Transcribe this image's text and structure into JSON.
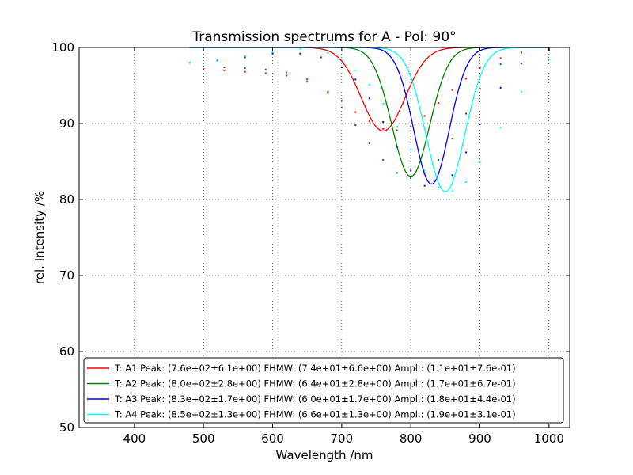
{
  "chart_data": {
    "type": "scatter",
    "title": "Transmission spectrums for A - Pol: 90°",
    "xlabel": "Wavelength  /nm",
    "ylabel": "rel. Intensity  /%",
    "xlim": [
      320,
      1030
    ],
    "ylim": [
      50,
      100
    ],
    "xticks": [
      "400",
      "500",
      "600",
      "700",
      "800",
      "900",
      "1000"
    ],
    "yticks": [
      "50",
      "60",
      "70",
      "80",
      "90",
      "100"
    ],
    "grid": true,
    "legend_position": "bottom",
    "series": [
      {
        "name": "T: A1 Peak: (7.6e+02±6.1e+00)  FHMW: (7.4e+01±6.6e+00)  Ampl.: (1.1e+01±7.6e-01)",
        "color": "#ff0000",
        "fit": {
          "peak": 760,
          "fwhm": 74,
          "amplitude": 11
        },
        "x": [
          500,
          530,
          560,
          590,
          620,
          650,
          680,
          700,
          720,
          740,
          760,
          780,
          800,
          820,
          840,
          860,
          880,
          900,
          930,
          960,
          1000
        ],
        "y": [
          97.2,
          97.0,
          96.8,
          96.6,
          96.3,
          95.5,
          94.2,
          93.0,
          91.5,
          90.3,
          89.3,
          89.1,
          89.6,
          91.0,
          92.7,
          94.4,
          95.9,
          97.3,
          98.6,
          99.4,
          99.8
        ]
      },
      {
        "name": "T: A2 Peak: (8.0e+02±2.8e+00)  FHMW: (6.4e+01±2.8e+00)  Ampl.: (1.7e+01±6.7e-01)",
        "color": "#008000",
        "fit": {
          "peak": 800,
          "fwhm": 64,
          "amplitude": 17
        },
        "x": [
          500,
          530,
          560,
          590,
          620,
          650,
          680,
          700,
          720,
          740,
          760,
          780,
          800,
          820,
          840,
          860,
          880,
          900,
          930,
          960,
          1000
        ],
        "y": [
          97.5,
          97.4,
          97.3,
          97.1,
          96.7,
          95.8,
          94.0,
          92.1,
          89.8,
          87.4,
          85.2,
          83.5,
          82.8,
          83.4,
          85.2,
          88.0,
          91.3,
          94.6,
          97.8,
          99.3,
          99.8
        ]
      },
      {
        "name": "T: A3 Peak: (8.3e+02±1.7e+00)  FHMW: (6.0e+01±1.7e+00)  Ampl.: (1.8e+01±4.4e-01)",
        "color": "#0000ff",
        "fit": {
          "peak": 830,
          "fwhm": 60,
          "amplitude": 18
        },
        "x": [
          480,
          520,
          560,
          600,
          640,
          670,
          700,
          720,
          740,
          760,
          780,
          800,
          820,
          840,
          860,
          880,
          900,
          930,
          960,
          1000
        ],
        "y": [
          98.0,
          98.3,
          98.7,
          99.2,
          99.2,
          98.7,
          97.4,
          95.8,
          93.3,
          90.2,
          86.9,
          83.8,
          81.8,
          81.6,
          83.2,
          86.2,
          89.9,
          94.7,
          97.9,
          99.6
        ]
      },
      {
        "name": "T: A4 Peak: (8.5e+02±1.3e+00)  FHMW: (6.6e+01±1.3e+00)  Ampl.: (1.9e+01±3.1e-01)",
        "color": "#00ffff",
        "fit": {
          "peak": 850,
          "fwhm": 66,
          "amplitude": 19
        },
        "x": [
          480,
          520,
          560,
          600,
          640,
          680,
          700,
          720,
          740,
          760,
          780,
          800,
          820,
          840,
          860,
          880,
          900,
          930,
          960,
          1000
        ],
        "y": [
          98.0,
          98.4,
          98.9,
          99.4,
          99.8,
          99.3,
          98.3,
          97.0,
          95.1,
          92.6,
          89.6,
          86.6,
          83.8,
          81.6,
          81.1,
          82.3,
          84.9,
          89.5,
          94.2,
          98.4
        ]
      }
    ]
  }
}
